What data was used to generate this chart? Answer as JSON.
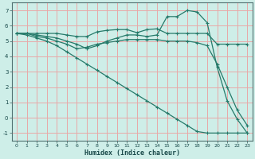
{
  "xlabel": "Humidex (Indice chaleur)",
  "ylabel": "",
  "bg_color": "#ceeee8",
  "grid_color": "#e8a8a8",
  "line_color": "#267a6a",
  "xlim": [
    -0.5,
    23.5
  ],
  "ylim": [
    -1.5,
    7.5
  ],
  "xticks": [
    0,
    1,
    2,
    3,
    4,
    5,
    6,
    7,
    8,
    9,
    10,
    11,
    12,
    13,
    14,
    15,
    16,
    17,
    18,
    19,
    20,
    21,
    22,
    23
  ],
  "yticks": [
    -1,
    0,
    1,
    2,
    3,
    4,
    5,
    6,
    7
  ],
  "line1_x": [
    0,
    1,
    2,
    3,
    4,
    5,
    6,
    7,
    8,
    9,
    10,
    11,
    12,
    13,
    14,
    15,
    16,
    17,
    18,
    19,
    20,
    21,
    22,
    23
  ],
  "line1_y": [
    5.5,
    5.5,
    5.5,
    5.5,
    5.5,
    5.4,
    5.3,
    5.3,
    5.6,
    5.7,
    5.75,
    5.75,
    5.55,
    5.75,
    5.8,
    5.5,
    5.5,
    5.5,
    5.5,
    5.5,
    4.8,
    4.8,
    4.8,
    4.8
  ],
  "line2_x": [
    0,
    1,
    2,
    3,
    4,
    5,
    6,
    7,
    8,
    9,
    10,
    11,
    12,
    13,
    14,
    15,
    16,
    17,
    18,
    19,
    20,
    21,
    22,
    23
  ],
  "line2_y": [
    5.5,
    5.5,
    5.4,
    5.3,
    5.2,
    5.0,
    4.8,
    4.5,
    4.7,
    5.0,
    5.2,
    5.4,
    5.4,
    5.3,
    5.4,
    6.6,
    6.6,
    7.0,
    6.9,
    6.2,
    3.3,
    1.1,
    -0.1,
    -1.0
  ],
  "line3_x": [
    0,
    1,
    2,
    3,
    4,
    5,
    6,
    7,
    8,
    9,
    10,
    11,
    12,
    13,
    14,
    15,
    16,
    17,
    18,
    19,
    20,
    21,
    22,
    23
  ],
  "line3_y": [
    5.5,
    5.5,
    5.3,
    5.2,
    5.0,
    4.8,
    4.5,
    4.6,
    4.8,
    4.9,
    5.0,
    5.1,
    5.1,
    5.1,
    5.1,
    5.0,
    5.0,
    5.0,
    4.9,
    4.7,
    3.5,
    2.0,
    0.5,
    -0.5
  ],
  "line4_x": [
    0,
    1,
    2,
    3,
    4,
    5,
    6,
    7,
    8,
    9,
    10,
    11,
    12,
    13,
    14,
    15,
    16,
    17,
    18,
    19,
    20,
    21,
    22,
    23
  ],
  "line4_y": [
    5.5,
    5.4,
    5.2,
    5.0,
    4.7,
    4.3,
    3.9,
    3.5,
    3.1,
    2.7,
    2.3,
    1.9,
    1.5,
    1.1,
    0.7,
    0.3,
    -0.1,
    -0.5,
    -0.9,
    -1.0,
    -1.0,
    -1.0,
    -1.0,
    -1.0
  ]
}
